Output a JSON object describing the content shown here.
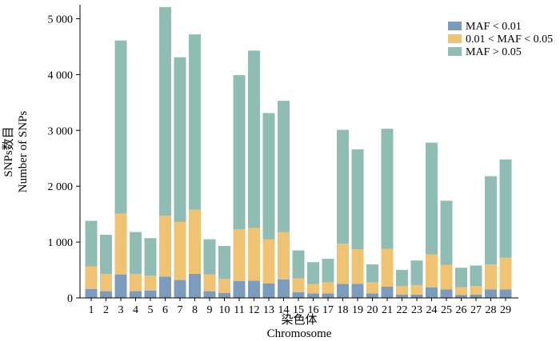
{
  "chart_data": {
    "type": "bar",
    "stacked": true,
    "xlabel_cn": "染色体",
    "xlabel": "Chromosome",
    "ylabel_cn": "SNPs数目",
    "ylabel": "Number of SNPs",
    "ylim": [
      0,
      5250
    ],
    "yticks": [
      0,
      1000,
      2000,
      3000,
      4000,
      5000
    ],
    "ytick_labels": [
      "0",
      "1 000",
      "2 000",
      "3 000",
      "4 000",
      "5 000"
    ],
    "legend_position": "top-right",
    "categories": [
      "1",
      "2",
      "3",
      "4",
      "5",
      "6",
      "7",
      "8",
      "9",
      "10",
      "11",
      "12",
      "13",
      "14",
      "15",
      "16",
      "17",
      "18",
      "19",
      "20",
      "21",
      "22",
      "23",
      "24",
      "25",
      "26",
      "27",
      "28",
      "29"
    ],
    "series": [
      {
        "name": "MAF < 0.01",
        "color": "#7b9cbf",
        "values": [
          160,
          120,
          420,
          120,
          130,
          380,
          320,
          430,
          120,
          90,
          300,
          310,
          260,
          330,
          100,
          80,
          80,
          250,
          250,
          80,
          200,
          60,
          60,
          190,
          150,
          50,
          60,
          150,
          150
        ]
      },
      {
        "name": "0.01 < MAF < 0.05",
        "color": "#f0c373",
        "values": [
          400,
          310,
          1090,
          310,
          270,
          1090,
          1040,
          1150,
          300,
          250,
          930,
          940,
          790,
          850,
          250,
          170,
          200,
          720,
          620,
          200,
          680,
          150,
          170,
          590,
          440,
          140,
          150,
          450,
          570
        ]
      },
      {
        "name": "MAF > 0.05",
        "color": "#8fbdb4",
        "values": [
          820,
          700,
          3100,
          750,
          670,
          3740,
          2950,
          3140,
          630,
          590,
          2760,
          3180,
          2260,
          2350,
          500,
          390,
          420,
          2040,
          1790,
          320,
          2150,
          290,
          440,
          2000,
          1150,
          350,
          370,
          1580,
          1760
        ]
      }
    ]
  }
}
